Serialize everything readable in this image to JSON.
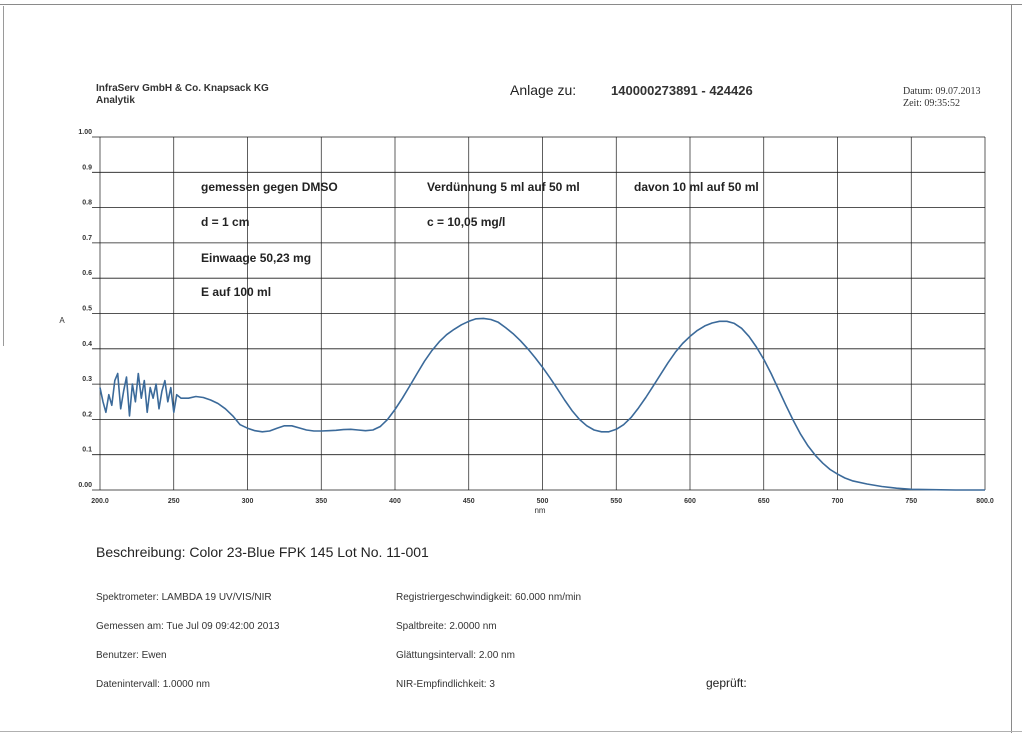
{
  "header": {
    "company": "InfraServ GmbH & Co. Knapsack KG",
    "department": "Analytik",
    "annex_label": "Anlage zu:",
    "annex_value": "140000273891 - 424426",
    "date": "Datum: 09.07.2013",
    "time": "Zeit: 09:35:52"
  },
  "annotations": {
    "reference": "gemessen gegen DMSO",
    "path_length": "d = 1 cm",
    "weight": "Einwaage 50,23 mg",
    "extinction": "E auf 100 ml",
    "dilution_1": "Verdünnung 5 ml auf 50 ml",
    "dilution_2": "davon 10 ml auf 50 ml",
    "concentration": "c = 10,05 mg/l"
  },
  "chart_data": {
    "type": "line",
    "xlabel": "nm",
    "ylabel": "A",
    "xlim": [
      200,
      800
    ],
    "ylim": [
      0,
      1
    ],
    "x_ticks": [
      "200.0",
      "250",
      "300",
      "350",
      "400",
      "450",
      "500",
      "550",
      "600",
      "650",
      "700",
      "750",
      "800.0"
    ],
    "y_ticks": [
      "0.00",
      "0.1",
      "0.2",
      "0.3",
      "0.4",
      "0.5",
      "0.6",
      "0.7",
      "0.8",
      "0.9",
      "1.00"
    ],
    "grid": true,
    "line_color": "#3b6a9a",
    "series": [
      {
        "x": [
          200,
          202,
          204,
          206,
          208,
          210,
          212,
          214,
          216,
          218,
          220,
          222,
          224,
          226,
          228,
          230,
          232,
          234,
          236,
          238,
          240,
          242,
          244,
          246,
          248,
          250,
          252,
          255,
          260,
          265,
          270,
          275,
          280,
          285,
          290,
          295,
          300,
          305,
          310,
          315,
          320,
          325,
          330,
          335,
          340,
          345,
          350,
          355,
          360,
          365,
          370,
          375,
          380,
          385,
          390,
          395,
          400,
          405,
          410,
          415,
          420,
          425,
          430,
          435,
          440,
          445,
          450,
          455,
          460,
          465,
          470,
          475,
          480,
          485,
          490,
          495,
          500,
          505,
          510,
          515,
          520,
          525,
          530,
          535,
          540,
          545,
          550,
          555,
          560,
          565,
          570,
          575,
          580,
          585,
          590,
          595,
          600,
          605,
          610,
          615,
          620,
          625,
          630,
          635,
          640,
          645,
          650,
          655,
          660,
          665,
          670,
          675,
          680,
          685,
          690,
          695,
          700,
          705,
          710,
          720,
          730,
          740,
          750,
          760,
          780,
          800
        ],
        "y": [
          0.29,
          0.25,
          0.22,
          0.27,
          0.24,
          0.31,
          0.33,
          0.23,
          0.28,
          0.32,
          0.21,
          0.3,
          0.25,
          0.33,
          0.26,
          0.31,
          0.22,
          0.29,
          0.26,
          0.3,
          0.23,
          0.28,
          0.31,
          0.25,
          0.29,
          0.22,
          0.27,
          0.26,
          0.26,
          0.265,
          0.262,
          0.255,
          0.245,
          0.23,
          0.21,
          0.185,
          0.175,
          0.168,
          0.165,
          0.167,
          0.175,
          0.182,
          0.182,
          0.176,
          0.17,
          0.167,
          0.167,
          0.168,
          0.169,
          0.171,
          0.172,
          0.17,
          0.168,
          0.17,
          0.18,
          0.2,
          0.228,
          0.26,
          0.295,
          0.33,
          0.365,
          0.395,
          0.42,
          0.44,
          0.455,
          0.468,
          0.478,
          0.485,
          0.486,
          0.483,
          0.475,
          0.46,
          0.443,
          0.423,
          0.4,
          0.375,
          0.348,
          0.318,
          0.287,
          0.255,
          0.225,
          0.2,
          0.182,
          0.17,
          0.165,
          0.165,
          0.172,
          0.185,
          0.205,
          0.232,
          0.262,
          0.294,
          0.327,
          0.36,
          0.39,
          0.415,
          0.435,
          0.452,
          0.465,
          0.473,
          0.478,
          0.478,
          0.472,
          0.458,
          0.435,
          0.405,
          0.37,
          0.33,
          0.285,
          0.24,
          0.197,
          0.158,
          0.125,
          0.098,
          0.076,
          0.058,
          0.045,
          0.034,
          0.026,
          0.017,
          0.01,
          0.005,
          0.002,
          0.001,
          0.0,
          0.0
        ]
      }
    ]
  },
  "description_line": "Beschreibung: Color 23-Blue FPK 145 Lot No. 11-001",
  "info": {
    "spectrometer": "Spektrometer: LAMBDA 19 UV/VIS/NIR",
    "measured_on": "Gemessen am: Tue Jul 09 09:42:00 2013",
    "user": "Benutzer: Ewen",
    "data_interval": "Datenintervall: 1.0000 nm",
    "scan_speed": "Registriergeschwindigkeit: 60.000 nm/min",
    "slit_width": "Spaltbreite: 2.0000 nm",
    "smoothing": "Glättungsintervall: 2.00 nm",
    "nir_sensitivity": "NIR-Empfindlichkeit: 3",
    "checked": "geprüft:"
  }
}
